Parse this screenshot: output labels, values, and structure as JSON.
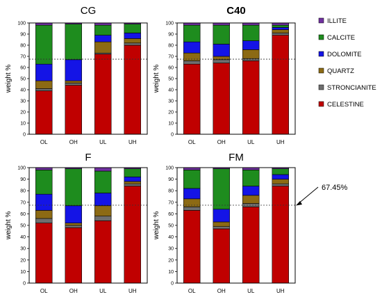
{
  "components": [
    "ILLITE",
    "CALCITE",
    "DOLOMITE",
    "QUARTZ",
    "STRONCIANITE",
    "CELESTINE"
  ],
  "colors": {
    "ILLITE": "#7030a0",
    "CALCITE": "#1e8c1e",
    "DOLOMITE": "#1414e6",
    "QUARTZ": "#8c6a14",
    "STRONCIANITE": "#6e6e6e",
    "CELESTINE": "#c00000"
  },
  "annotation": {
    "label": "67.45%",
    "value": 67.45
  },
  "chart_data": [
    {
      "type": "bar",
      "stacked": true,
      "title": "CG",
      "title_bold": false,
      "ylabel": "weight %",
      "xlabel": "",
      "ylim": [
        0,
        100
      ],
      "yticks": [
        0,
        10,
        20,
        30,
        40,
        50,
        60,
        70,
        80,
        90,
        100
      ],
      "categories": [
        "OL",
        "OH",
        "UL",
        "UH"
      ],
      "reference_line": 67.45,
      "series": [
        {
          "name": "CELESTINE",
          "values": [
            39,
            44,
            72,
            80
          ]
        },
        {
          "name": "STRONCIANITE",
          "values": [
            2,
            2,
            1,
            2
          ]
        },
        {
          "name": "QUARTZ",
          "values": [
            7,
            2,
            10,
            4
          ]
        },
        {
          "name": "DOLOMITE",
          "values": [
            15,
            19,
            6,
            5
          ]
        },
        {
          "name": "CALCITE",
          "values": [
            35,
            32,
            9,
            8
          ]
        },
        {
          "name": "ILLITE",
          "values": [
            2,
            1,
            2,
            1
          ]
        }
      ]
    },
    {
      "type": "bar",
      "stacked": true,
      "title": "C40",
      "title_bold": true,
      "ylabel": "weight %",
      "xlabel": "",
      "ylim": [
        0,
        100
      ],
      "yticks": [
        0,
        10,
        20,
        30,
        40,
        50,
        60,
        70,
        80,
        90,
        100
      ],
      "categories": [
        "OL",
        "OH",
        "UL",
        "UH"
      ],
      "reference_line": 67.45,
      "series": [
        {
          "name": "CELESTINE",
          "values": [
            63,
            64,
            66,
            89
          ]
        },
        {
          "name": "STRONCIANITE",
          "values": [
            3,
            3,
            2,
            2
          ]
        },
        {
          "name": "QUARTZ",
          "values": [
            7,
            3,
            8,
            3
          ]
        },
        {
          "name": "DOLOMITE",
          "values": [
            10,
            11,
            8,
            2
          ]
        },
        {
          "name": "CALCITE",
          "values": [
            15,
            17,
            14,
            2
          ]
        },
        {
          "name": "ILLITE",
          "values": [
            2,
            2,
            2,
            2
          ]
        }
      ]
    },
    {
      "type": "bar",
      "stacked": true,
      "title": "F",
      "title_bold": false,
      "ylabel": "weight %",
      "xlabel": "",
      "ylim": [
        0,
        100
      ],
      "yticks": [
        0,
        10,
        20,
        30,
        40,
        50,
        60,
        70,
        80,
        90,
        100
      ],
      "categories": [
        "OL",
        "OH",
        "UL",
        "UH"
      ],
      "reference_line": 67.45,
      "series": [
        {
          "name": "CELESTINE",
          "values": [
            52,
            48,
            54,
            84
          ]
        },
        {
          "name": "STRONCIANITE",
          "values": [
            4,
            2,
            4,
            2
          ]
        },
        {
          "name": "QUARTZ",
          "values": [
            7,
            2,
            9,
            2
          ]
        },
        {
          "name": "DOLOMITE",
          "values": [
            14,
            15,
            11,
            4
          ]
        },
        {
          "name": "CALCITE",
          "values": [
            21,
            32,
            19,
            7
          ]
        },
        {
          "name": "ILLITE",
          "values": [
            2,
            1,
            3,
            1
          ]
        }
      ]
    },
    {
      "type": "bar",
      "stacked": true,
      "title": "FM",
      "title_bold": false,
      "ylabel": "weight %",
      "xlabel": "",
      "ylim": [
        0,
        100
      ],
      "yticks": [
        0,
        10,
        20,
        30,
        40,
        50,
        60,
        70,
        80,
        90,
        100
      ],
      "categories": [
        "OL",
        "OH",
        "UL",
        "UH"
      ],
      "reference_line": 67.45,
      "series": [
        {
          "name": "CELESTINE",
          "values": [
            63,
            47,
            66,
            84
          ]
        },
        {
          "name": "STRONCIANITE",
          "values": [
            3,
            2,
            3,
            2
          ]
        },
        {
          "name": "QUARTZ",
          "values": [
            7,
            4,
            7,
            4
          ]
        },
        {
          "name": "DOLOMITE",
          "values": [
            9,
            11,
            8,
            4
          ]
        },
        {
          "name": "CALCITE",
          "values": [
            16,
            35,
            14,
            5
          ]
        },
        {
          "name": "ILLITE",
          "values": [
            2,
            1,
            2,
            1
          ]
        }
      ]
    }
  ]
}
